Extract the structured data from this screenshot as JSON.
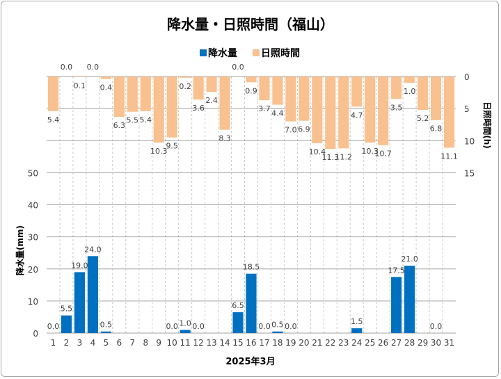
{
  "chart_data": {
    "type": "bar",
    "title": "降水量・日照時間（福山）",
    "xlabel": "2025年3月",
    "ylabel": "降水量(mm)",
    "y2label": "日照時間(h)",
    "ylim": [
      0,
      80
    ],
    "yticks": [
      0,
      10,
      20,
      30,
      40,
      50
    ],
    "y2lim": [
      0,
      40
    ],
    "y2ticks": [
      0,
      5,
      10,
      15
    ],
    "y2_reversed": true,
    "legend_position": "top",
    "categories": [
      "1",
      "2",
      "3",
      "4",
      "5",
      "6",
      "7",
      "8",
      "9",
      "10",
      "11",
      "12",
      "13",
      "14",
      "15",
      "16",
      "17",
      "18",
      "19",
      "20",
      "21",
      "22",
      "23",
      "24",
      "25",
      "26",
      "27",
      "28",
      "29",
      "30",
      "31"
    ],
    "series": [
      {
        "name": "降水量",
        "axis": "left",
        "color": "#0070c0",
        "values": [
          0.0,
          5.5,
          19.0,
          24.0,
          0.5,
          null,
          null,
          null,
          null,
          0.0,
          1.0,
          0.0,
          null,
          null,
          6.5,
          18.5,
          0.0,
          0.5,
          0.0,
          null,
          null,
          null,
          null,
          1.5,
          null,
          null,
          17.5,
          21.0,
          null,
          0.0,
          null
        ]
      },
      {
        "name": "日照時間",
        "axis": "right",
        "color": "#f8c18f",
        "values": [
          5.4,
          0.0,
          0.1,
          0.0,
          0.4,
          6.3,
          5.5,
          5.4,
          10.3,
          9.5,
          0.2,
          3.6,
          2.4,
          8.3,
          0.0,
          0.9,
          3.7,
          4.4,
          7.0,
          6.9,
          10.4,
          11.3,
          11.2,
          4.7,
          10.3,
          10.7,
          3.5,
          1.0,
          5.2,
          6.8,
          11.1
        ]
      }
    ]
  }
}
